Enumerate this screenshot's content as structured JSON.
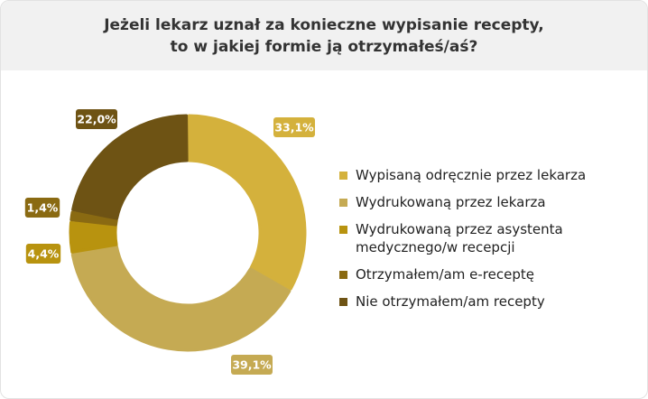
{
  "chart_data": {
    "type": "pie",
    "variant": "donut",
    "title": "Jeżeli lekarz uznał za konieczne wypisanie recepty, to w jakiej formie ją otrzymałeś/aś?",
    "title_lines": [
      "Jeżeli lekarz uznał za konieczne wypisanie recepty,",
      "to w jakiej formie ją otrzymałeś/aś?"
    ],
    "legend_position": "right",
    "categories": [
      "Wypisaną odręcznie przez lekarza",
      "Wydrukowaną przez lekarza",
      "Wydrukowaną przez asystenta medycznego/w recepcji",
      "Otrzymałem/am e-receptę",
      "Nie otrzymałem/am recepty"
    ],
    "values": [
      33.1,
      39.1,
      4.4,
      1.4,
      22.0
    ],
    "labels": [
      "33,1%",
      "39,1%",
      "4,4%",
      "1,4%",
      "22,0%"
    ],
    "colors": [
      "#D4B13C",
      "#C5AA53",
      "#B8930F",
      "#8A6A12",
      "#6E5314"
    ]
  }
}
